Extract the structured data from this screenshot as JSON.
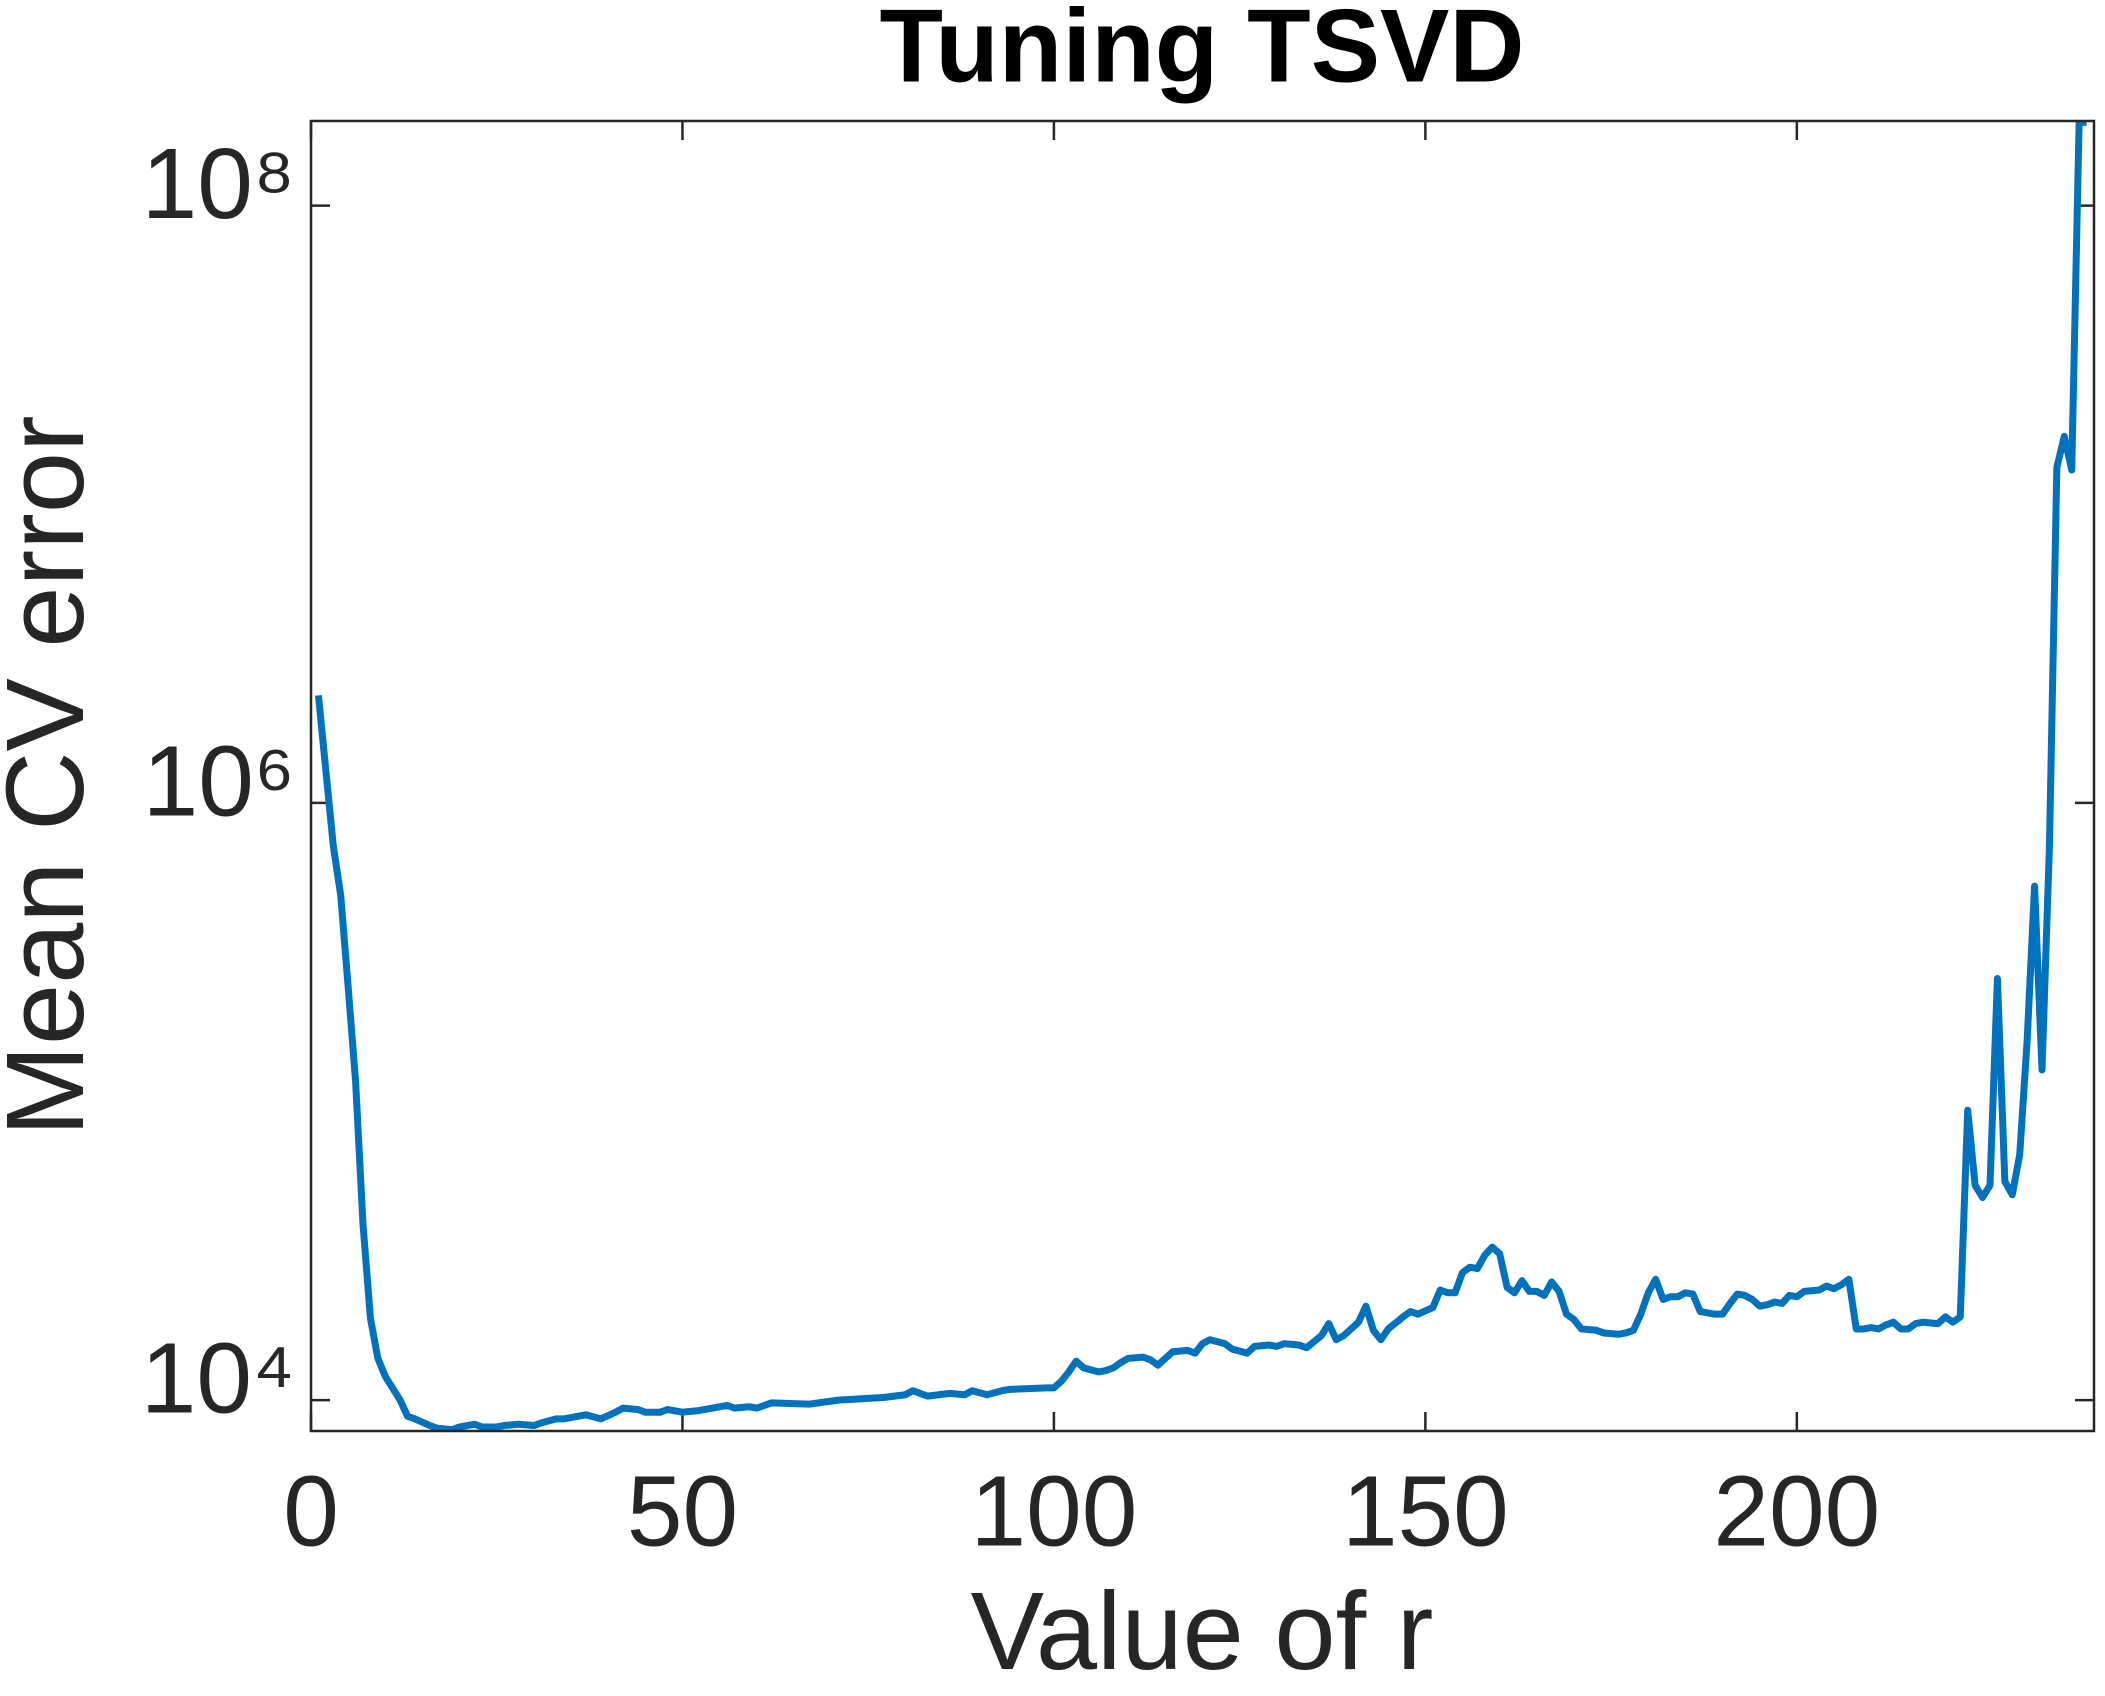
{
  "chart_data": {
    "type": "line",
    "title": "Tuning TSVD",
    "xlabel": "Value of r",
    "ylabel": "Mean CV error",
    "yscale": "log",
    "xlim": [
      0,
      240
    ],
    "xticks": [
      0,
      50,
      100,
      150,
      200
    ],
    "ylim": [
      7880,
      192000000
    ],
    "yticks": [
      {
        "value": 10000,
        "label": "10⁴"
      },
      {
        "value": 1000000,
        "label": "10⁶"
      },
      {
        "value": 100000000,
        "label": "10⁸"
      }
    ],
    "grid": false,
    "series": [
      {
        "color": "#0072bd",
        "x": [
          1,
          3,
          4,
          5,
          6,
          7,
          8,
          9,
          10,
          12,
          13,
          14,
          16,
          17,
          19,
          20,
          22,
          23,
          25,
          26,
          28,
          30,
          31,
          33,
          34,
          36,
          37,
          39,
          41,
          42,
          44,
          45,
          47,
          48,
          50,
          52,
          56,
          57,
          59,
          60,
          62,
          67,
          71,
          77,
          80,
          81,
          83,
          86,
          88,
          89,
          91,
          93,
          94,
          99,
          100,
          101,
          102,
          103,
          104,
          106,
          107,
          108,
          109,
          110,
          112,
          113,
          114,
          115,
          116,
          118,
          119,
          120,
          121,
          123,
          124,
          126,
          127,
          129,
          130,
          131,
          133,
          134,
          136,
          137,
          138,
          139,
          141,
          142,
          143,
          144,
          145,
          147,
          148,
          149,
          151,
          152,
          153,
          154,
          155,
          156,
          157,
          158,
          159,
          160,
          161,
          162,
          163,
          164,
          165,
          166,
          167,
          168,
          169,
          170,
          171,
          173,
          174,
          176,
          177,
          178,
          179,
          180,
          181,
          182,
          183,
          184,
          185,
          186,
          187,
          189,
          190,
          191,
          192,
          193,
          194,
          195,
          196,
          197,
          198,
          199,
          200,
          201,
          203,
          204,
          205,
          206,
          207,
          208,
          209,
          210,
          211,
          212,
          213,
          214,
          215,
          216,
          217,
          219,
          220,
          221,
          222,
          223,
          224,
          225,
          226,
          227,
          228,
          229,
          230,
          231,
          232,
          233,
          234,
          235,
          236,
          237,
          238,
          239
        ],
        "values": [
          2290000,
          718000,
          490000,
          242000,
          117000,
          38800,
          18800,
          13800,
          12000,
          10000,
          8830,
          8650,
          8220,
          8050,
          7960,
          8130,
          8300,
          8130,
          8130,
          8220,
          8300,
          8220,
          8390,
          8650,
          8650,
          8830,
          8930,
          8650,
          9110,
          9400,
          9300,
          9110,
          9110,
          9300,
          9110,
          9210,
          9600,
          9400,
          9500,
          9400,
          9790,
          9690,
          10000,
          10200,
          10420,
          10750,
          10310,
          10530,
          10420,
          10750,
          10420,
          10750,
          10860,
          10990,
          10990,
          11560,
          12430,
          13500,
          12820,
          12430,
          12560,
          12820,
          13360,
          13800,
          13930,
          13640,
          13090,
          13800,
          14520,
          14670,
          14360,
          15450,
          15930,
          15450,
          14820,
          14360,
          15130,
          15290,
          15130,
          15450,
          15290,
          14970,
          16430,
          18040,
          15930,
          16430,
          18230,
          20640,
          17130,
          15930,
          17310,
          19000,
          19800,
          19400,
          20420,
          23360,
          22880,
          22880,
          26730,
          27860,
          27570,
          30580,
          32540,
          30900,
          23850,
          22880,
          25120,
          23120,
          23120,
          22420,
          24860,
          23120,
          19400,
          18610,
          17310,
          17130,
          16780,
          16610,
          16780,
          17130,
          19400,
          22880,
          25380,
          21730,
          22190,
          22190,
          22880,
          22650,
          19800,
          19400,
          19400,
          21070,
          22650,
          22420,
          21730,
          20640,
          20850,
          21290,
          21070,
          22420,
          22190,
          23120,
          23360,
          24100,
          23600,
          24350,
          25380,
          17310,
          17310,
          17490,
          17310,
          17850,
          18230,
          17310,
          17310,
          18040,
          18230,
          18040,
          19000,
          18230,
          19000,
          93500,
          52400,
          47700,
          52400,
          258000,
          54000,
          48700,
          66400,
          160000,
          526000,
          127500,
          718000,
          13290000,
          16870000,
          13020000,
          190000000,
          190000000
        ]
      }
    ]
  }
}
